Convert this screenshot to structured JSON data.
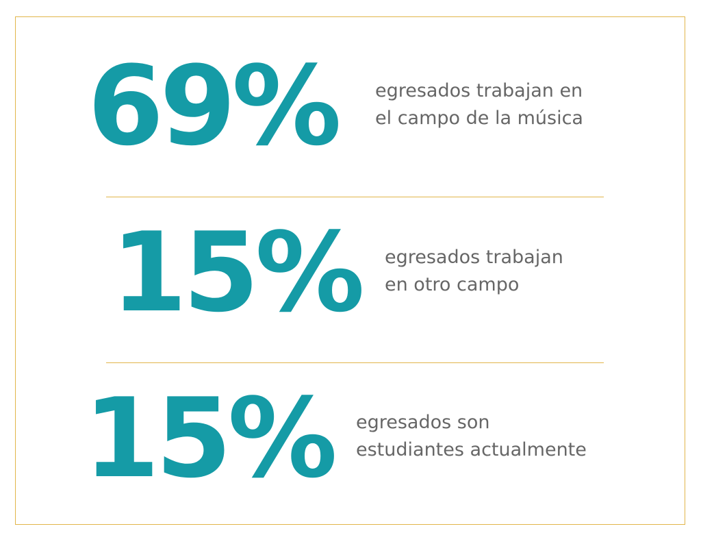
{
  "stats": [
    {
      "value": "69%",
      "description": [
        "egresados trabajan en",
        "el campo de la música"
      ]
    },
    {
      "value": "15%",
      "description": [
        "egresados trabajan",
        "en otro campo"
      ]
    },
    {
      "value": "15%",
      "description": [
        "egresados son",
        "estudiantes actualmente"
      ]
    }
  ]
}
